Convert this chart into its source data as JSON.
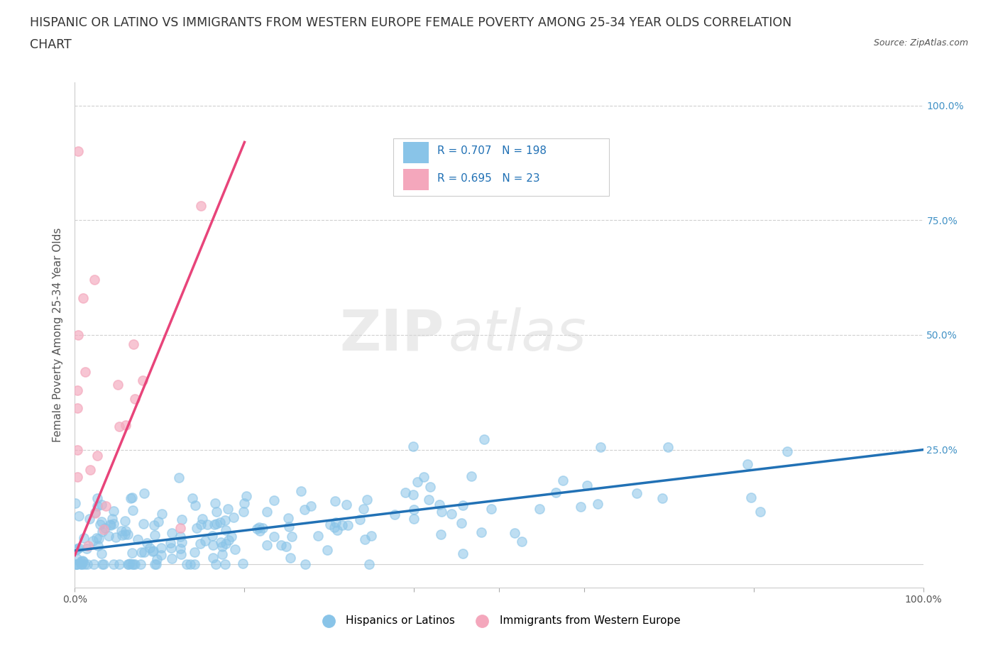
{
  "title_line1": "HISPANIC OR LATINO VS IMMIGRANTS FROM WESTERN EUROPE FEMALE POVERTY AMONG 25-34 YEAR OLDS CORRELATION",
  "title_line2": "CHART",
  "source_text": "Source: ZipAtlas.com",
  "ylabel": "Female Poverty Among 25-34 Year Olds",
  "R_blue": 0.707,
  "N_blue": 198,
  "R_pink": 0.695,
  "N_pink": 23,
  "watermark_zip": "ZIP",
  "watermark_atlas": "atlas",
  "legend_label_blue": "Hispanics or Latinos",
  "legend_label_pink": "Immigrants from Western Europe",
  "blue_scatter_color": "#89c4e8",
  "pink_scatter_color": "#f4a7bc",
  "blue_line_color": "#2171b5",
  "pink_line_color": "#e8447a",
  "blue_text_color": "#2171b5",
  "legend_text_black": "#333333",
  "background_color": "#ffffff",
  "grid_color": "#d0d0d0",
  "title_color": "#333333",
  "source_color": "#555555",
  "ylabel_color": "#555555",
  "tick_color": "#555555",
  "right_tick_color": "#4292c6",
  "title_fontsize": 12.5,
  "axis_label_fontsize": 11,
  "tick_fontsize": 10,
  "legend_fontsize": 11,
  "watermark_fontsize_zip": 60,
  "watermark_fontsize_atlas": 60
}
